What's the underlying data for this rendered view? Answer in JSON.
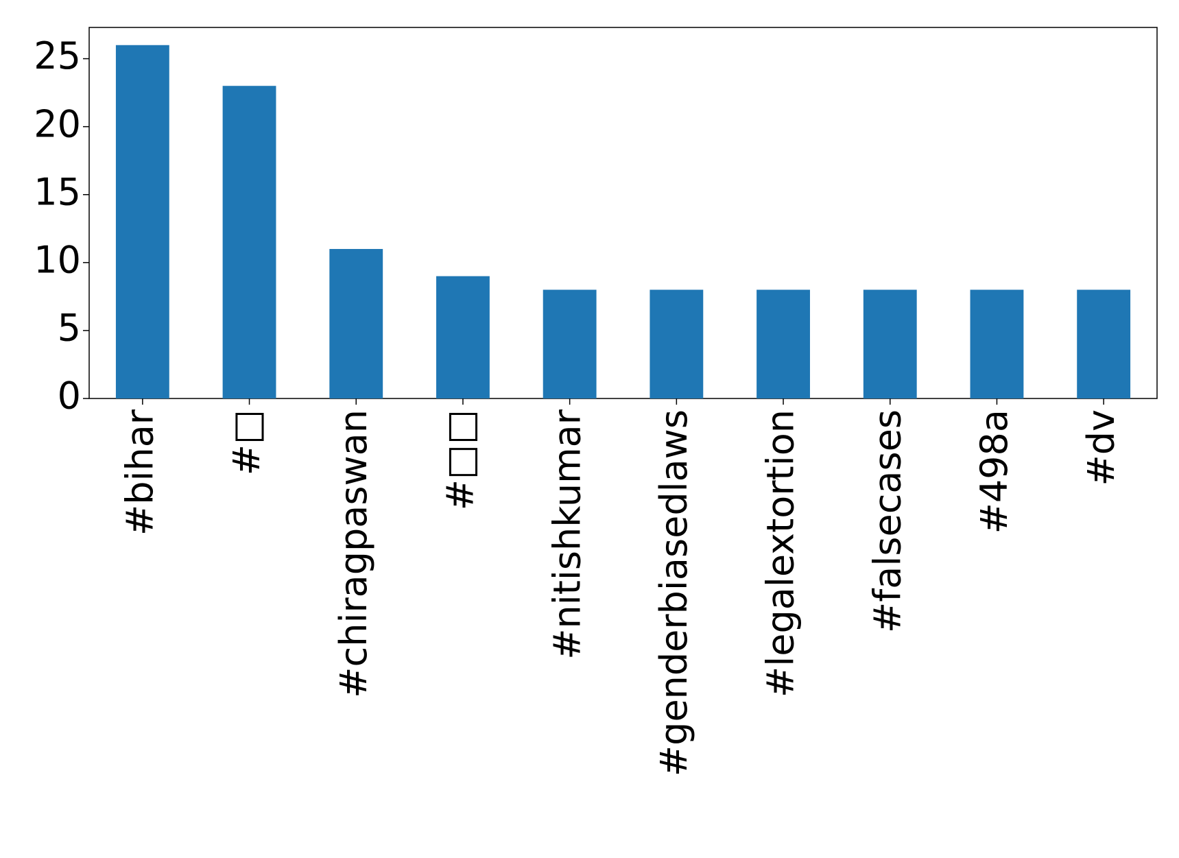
{
  "chart_data": {
    "type": "bar",
    "categories": [
      "#bihar",
      "#□",
      "#chiragpaswan",
      "#□□",
      "#nitishkumar",
      "#genderbiasedlaws",
      "#legalextortion",
      "#falsecases",
      "#498a",
      "#dv"
    ],
    "values": [
      26,
      23,
      11,
      9,
      8,
      8,
      8,
      8,
      8,
      8
    ],
    "color": "#1f77b4",
    "ylim": [
      0,
      27.3
    ],
    "yticks": [
      0,
      5,
      10,
      15,
      20,
      25
    ],
    "grid": false
  }
}
